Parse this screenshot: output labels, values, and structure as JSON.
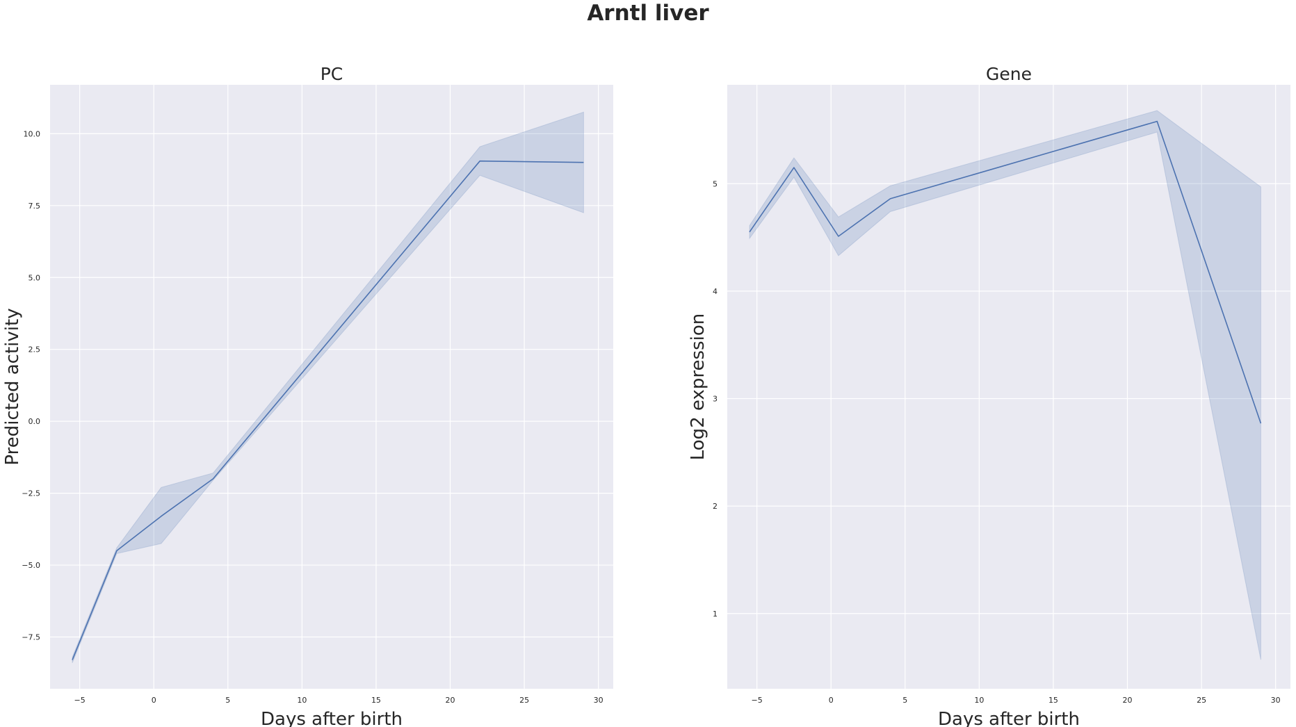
{
  "suptitle": "Arntl liver",
  "chart_data": [
    {
      "type": "line",
      "title": "PC",
      "xlabel": "Days after birth",
      "ylabel": "Predicted activity",
      "xlim": [
        -7,
        31
      ],
      "ylim": [
        -9.3,
        11.7
      ],
      "xticks": [
        -5,
        0,
        5,
        10,
        15,
        20,
        25,
        30
      ],
      "xtick_labels": [
        "−5",
        "0",
        "5",
        "10",
        "15",
        "20",
        "25",
        "30"
      ],
      "yticks": [
        -7.5,
        -5.0,
        -2.5,
        0.0,
        2.5,
        5.0,
        7.5,
        10.0
      ],
      "ytick_labels": [
        "−7.5",
        "−5.0",
        "−2.5",
        "0.0",
        "2.5",
        "5.0",
        "7.5",
        "10.0"
      ],
      "grid": true,
      "series": [
        {
          "color": "#4c72b0",
          "x": [
            -5.5,
            -2.5,
            0.5,
            4,
            22,
            29
          ],
          "y": [
            -8.3,
            -4.5,
            -3.3,
            -2.0,
            9.05,
            9.0
          ],
          "ci_low": [
            -8.4,
            -4.6,
            -4.25,
            -2.05,
            8.55,
            7.25
          ],
          "ci_high": [
            -8.2,
            -4.4,
            -2.3,
            -1.8,
            9.55,
            10.75
          ]
        }
      ]
    },
    {
      "type": "line",
      "title": "Gene",
      "xlabel": "Days after birth",
      "ylabel": "Log2 expression",
      "xlim": [
        -7,
        31
      ],
      "ylim": [
        0.3,
        5.92
      ],
      "xticks": [
        -5,
        0,
        5,
        10,
        15,
        20,
        25,
        30
      ],
      "xtick_labels": [
        "−5",
        "0",
        "5",
        "10",
        "15",
        "20",
        "25",
        "30"
      ],
      "yticks": [
        1,
        2,
        3,
        4,
        5
      ],
      "ytick_labels": [
        "1",
        "2",
        "3",
        "4",
        "5"
      ],
      "grid": true,
      "series": [
        {
          "color": "#4c72b0",
          "x": [
            -5.5,
            -2.5,
            0.5,
            4,
            22,
            29
          ],
          "y": [
            4.55,
            5.15,
            4.51,
            4.86,
            5.58,
            2.77
          ],
          "ci_low": [
            4.49,
            5.06,
            4.33,
            4.74,
            5.48,
            0.57
          ],
          "ci_high": [
            4.61,
            5.24,
            4.69,
            4.98,
            5.68,
            4.97
          ]
        }
      ]
    }
  ]
}
